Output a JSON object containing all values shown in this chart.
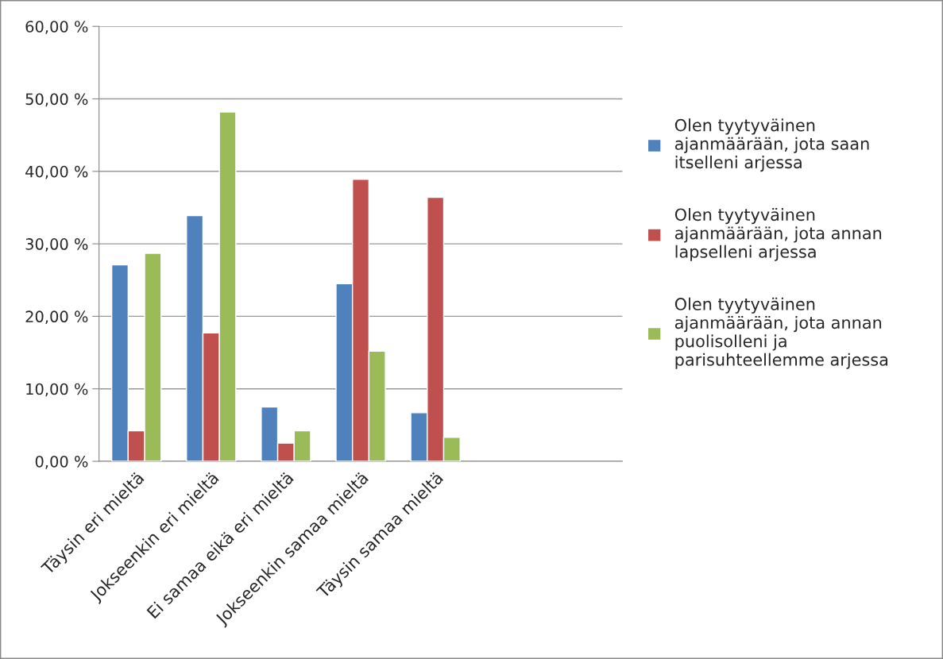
{
  "chart_data": {
    "type": "bar",
    "categories": [
      "Täysin eri mieltä",
      "Jokseenkin eri mieltä",
      "Ei samaa eikä eri mieltä",
      "Jokseenkin samaa mieltä",
      "Täysin samaa mieltä",
      null,
      null
    ],
    "series": [
      {
        "name": "Olen tyytyväinen ajanmäärään, jota saan itselleni arjessa",
        "color": "#4f81bd",
        "values": [
          27.1,
          33.9,
          7.5,
          24.5,
          6.7,
          null,
          null
        ]
      },
      {
        "name": "Olen tyytyväinen ajanmäärään, jota annan lapselleni arjessa",
        "color": "#c0504d",
        "values": [
          4.2,
          17.7,
          2.5,
          38.9,
          36.4,
          null,
          null
        ]
      },
      {
        "name": "Olen tyytyväinen ajanmäärään, jota annan puolisolleni ja parisuhteellemme arjessa",
        "color": "#9bbb59",
        "values": [
          28.7,
          48.2,
          4.2,
          15.2,
          3.3,
          null,
          null
        ]
      }
    ],
    "ylim": [
      0,
      60
    ],
    "yticks": [
      {
        "value": 0,
        "label": "0,00 %"
      },
      {
        "value": 10,
        "label": "10,00 %"
      },
      {
        "value": 20,
        "label": "20,00 %"
      },
      {
        "value": 30,
        "label": "30,00 %"
      },
      {
        "value": 40,
        "label": "40,00 %"
      },
      {
        "value": 50,
        "label": "50,00 %"
      },
      {
        "value": 60,
        "label": "60,00 %"
      }
    ],
    "grid": "y",
    "legend": "right"
  }
}
